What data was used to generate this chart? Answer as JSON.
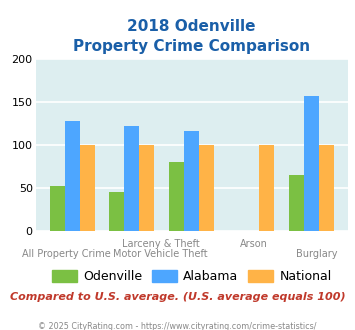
{
  "title_line1": "2018 Odenville",
  "title_line2": "Property Crime Comparison",
  "groups": [
    {
      "name": "All Property Crime",
      "odenville": 52,
      "alabama": 128,
      "national": 100
    },
    {
      "name": "Larceny & Theft",
      "odenville": 45,
      "alabama": 122,
      "national": 100
    },
    {
      "name": "Motor Vehicle Theft",
      "odenville": 80,
      "alabama": 117,
      "national": 100
    },
    {
      "name": "Arson",
      "odenville": 0,
      "alabama": 0,
      "national": 100
    },
    {
      "name": "Burglary",
      "odenville": 65,
      "alabama": 157,
      "national": 100
    }
  ],
  "color_odenville": "#7bc043",
  "color_alabama": "#4da6ff",
  "color_national": "#ffb347",
  "ylim": [
    0,
    200
  ],
  "yticks": [
    0,
    50,
    100,
    150,
    200
  ],
  "bg_color": "#ddeef0",
  "subtitle": "Compared to U.S. average. (U.S. average equals 100)",
  "footer": "© 2025 CityRating.com - https://www.cityrating.com/crime-statistics/",
  "title_color": "#1a5fa8",
  "subtitle_color": "#c0392b",
  "footer_color": "#888888",
  "label_color": "#888888",
  "bar_width": 0.25,
  "label_fontsize": 7.0,
  "title_fontsize": 11,
  "legend_fontsize": 9,
  "subtitle_fontsize": 8.0,
  "footer_fontsize": 5.8
}
